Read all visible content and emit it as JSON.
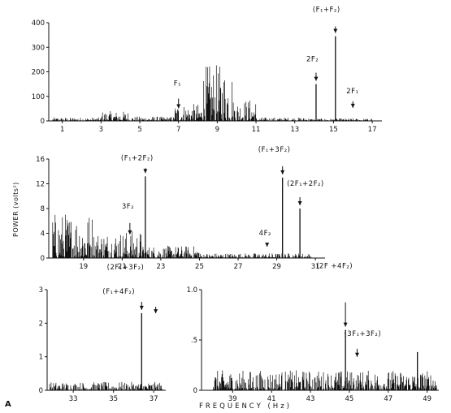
{
  "figure": {
    "panel_letter": "A",
    "xlabel": "FREQUENCY (Hz)",
    "ylabel": "POWER (volts²)"
  },
  "chart_data": [
    {
      "type": "line",
      "panel": "top",
      "xlim": [
        0.3,
        17.5
      ],
      "ylim": [
        0,
        400
      ],
      "xticks": [
        1,
        3,
        5,
        7,
        9,
        11,
        13,
        15,
        17
      ],
      "yticks": [
        0,
        100,
        200,
        300,
        400
      ],
      "peaks": [
        {
          "x": 7.0,
          "y": 38,
          "label": "F₁"
        },
        {
          "x": 14.1,
          "y": 150,
          "label": "2F₂"
        },
        {
          "x": 15.1,
          "y": 345,
          "label": "(F₁+F₂)"
        },
        {
          "x": 16.0,
          "y": 40,
          "label": "2F₁"
        }
      ],
      "labeled_lines": [
        {
          "x": 14.1,
          "y": 150
        },
        {
          "x": 15.1,
          "y": 345
        }
      ],
      "noise_regions": [
        {
          "from": 0.5,
          "to": 3.0,
          "amp": 14
        },
        {
          "from": 3.0,
          "to": 4.4,
          "amp": 40
        },
        {
          "from": 4.4,
          "to": 6.8,
          "amp": 18
        },
        {
          "from": 6.8,
          "to": 8.2,
          "amp": 70
        },
        {
          "from": 8.2,
          "to": 9.8,
          "amp": 230
        },
        {
          "from": 9.8,
          "to": 11.0,
          "amp": 90
        },
        {
          "from": 11.0,
          "to": 13.8,
          "amp": 14
        },
        {
          "from": 13.8,
          "to": 17.0,
          "amp": 10
        }
      ]
    },
    {
      "type": "line",
      "panel": "middle",
      "xlim": [
        17.2,
        31.5
      ],
      "ylim": [
        0,
        16
      ],
      "xticks": [
        19,
        21,
        23,
        25,
        27,
        29,
        31
      ],
      "yticks": [
        0,
        4,
        8,
        12,
        16
      ],
      "peaks": [
        {
          "x": 21.4,
          "y": 3.3,
          "label": "3F₂"
        },
        {
          "x": 22.2,
          "y": 13.2,
          "label": "(F₁+2F₂)"
        },
        {
          "x": 28.5,
          "y": 1.3,
          "label": "4F₂"
        },
        {
          "x": 29.3,
          "y": 13.0,
          "label": "(F₁+3F₂)"
        },
        {
          "x": 30.2,
          "y": 8.0,
          "label": "(2F₁+2F₂)"
        }
      ],
      "labeled_lines": [
        {
          "x": 22.2,
          "y": 13.2
        },
        {
          "x": 29.3,
          "y": 13.0
        },
        {
          "x": 30.2,
          "y": 8.0
        }
      ],
      "noise_regions": [
        {
          "from": 17.4,
          "to": 19.5,
          "amp": 7.5
        },
        {
          "from": 19.5,
          "to": 22.0,
          "amp": 4.5
        },
        {
          "from": 22.0,
          "to": 25.0,
          "amp": 2.0
        },
        {
          "from": 25.0,
          "to": 30.8,
          "amp": 0.8
        }
      ]
    },
    {
      "type": "line",
      "panel": "bottom-left",
      "xlim": [
        31.7,
        37.6
      ],
      "ylim": [
        0,
        3
      ],
      "xticks": [
        33,
        35,
        37
      ],
      "yticks": [
        0,
        1,
        2,
        3
      ],
      "peaks": [
        {
          "x": 36.4,
          "y": 2.3,
          "label": "(F₁+4F₂)"
        },
        {
          "x": 37.1,
          "y": 2.2,
          "label": "(2F₁+3F₂)"
        }
      ],
      "labeled_lines": [
        {
          "x": 36.4,
          "y": 2.3
        }
      ],
      "noise_regions": [
        {
          "from": 31.8,
          "to": 37.5,
          "amp": 0.25
        }
      ]
    },
    {
      "type": "line",
      "panel": "bottom-right",
      "xlim": [
        37.4,
        49.6
      ],
      "ylim": [
        0,
        1.0
      ],
      "xticks": [
        39,
        41,
        43,
        45,
        47,
        49
      ],
      "ytick_labels": [
        "0",
        ".5",
        "1.0"
      ],
      "yticks": [
        0,
        0.5,
        1.0
      ],
      "peaks": [
        {
          "x": 44.8,
          "y": 0.6,
          "label": "(2F +4F₂)"
        },
        {
          "x": 45.4,
          "y": 0.3,
          "label": "(3F₁+3F₂)"
        }
      ],
      "labeled_lines": [
        {
          "x": 44.8,
          "y": 0.6
        },
        {
          "x": 48.5,
          "y": 0.38
        }
      ],
      "noise_regions": [
        {
          "from": 38.0,
          "to": 49.5,
          "amp": 0.2
        }
      ]
    }
  ]
}
